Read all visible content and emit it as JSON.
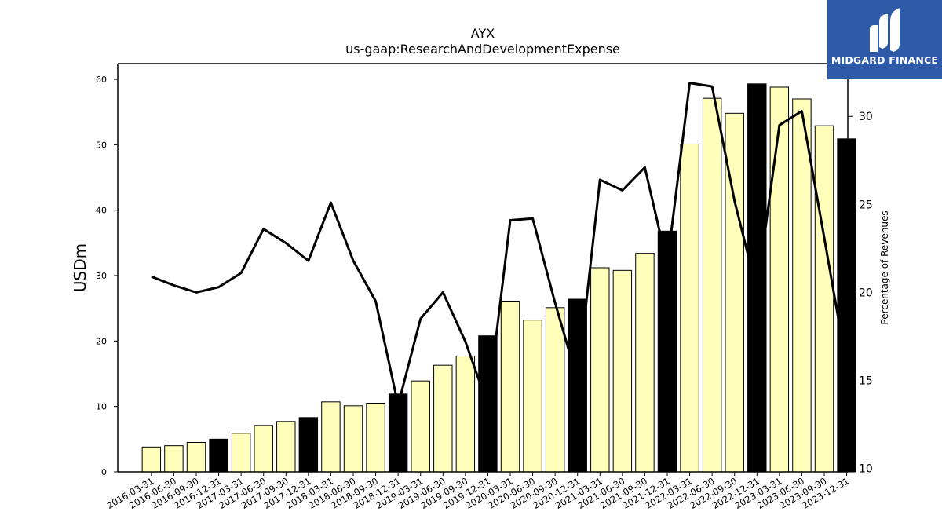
{
  "chart_data": {
    "type": "bar",
    "title": "AYX",
    "subtitle": "us-gaap:ResearchAndDevelopmentExpense",
    "ylabel": "USDm",
    "y2label": "Percentage of Revenues",
    "ylim": [
      0,
      62.4
    ],
    "y2lim": [
      9.8,
      33.0
    ],
    "yticks": [
      0,
      10,
      20,
      30,
      40,
      50,
      60
    ],
    "y2ticks": [
      10,
      15,
      20,
      25,
      30
    ],
    "categories": [
      "2016-03-31",
      "2016-06-30",
      "2016-09-30",
      "2016-12-31",
      "2017-03-31",
      "2017-06-30",
      "2017-09-30",
      "2017-12-31",
      "2018-03-31",
      "2018-06-30",
      "2018-09-30",
      "2018-12-31",
      "2019-03-31",
      "2019-06-30",
      "2019-09-30",
      "2019-12-31",
      "2020-03-31",
      "2020-06-30",
      "2020-09-30",
      "2020-12-31",
      "2021-03-31",
      "2021-06-30",
      "2021-09-30",
      "2021-12-31",
      "2022-03-31",
      "2022-06-30",
      "2022-09-30",
      "2022-12-31",
      "2023-03-31",
      "2023-06-30",
      "2023-09-30",
      "2023-12-31"
    ],
    "series": [
      {
        "kind": "bar",
        "axis": "left",
        "values": [
          3.8,
          4.0,
          4.5,
          5.0,
          5.9,
          7.1,
          7.7,
          8.3,
          10.7,
          10.1,
          10.5,
          11.9,
          13.9,
          16.3,
          17.7,
          20.8,
          26.1,
          23.2,
          25.1,
          26.4,
          31.2,
          30.8,
          33.4,
          36.8,
          50.1,
          57.1,
          54.8,
          59.3,
          58.8,
          57.0,
          52.9,
          50.9
        ],
        "colors": {
          "quarter": "#ffffbb",
          "year_end": "#000000"
        }
      },
      {
        "kind": "line",
        "axis": "right",
        "color": "#000000",
        "values": [
          20.9,
          20.4,
          20.0,
          20.3,
          21.1,
          23.6,
          22.8,
          21.8,
          25.1,
          21.8,
          19.5,
          13.6,
          18.5,
          20.0,
          17.2,
          13.6,
          24.1,
          24.2,
          19.4,
          15.0,
          26.4,
          25.8,
          27.1,
          21.6,
          31.9,
          31.7,
          25.2,
          20.1,
          29.5,
          30.3,
          23.1,
          15.8
        ]
      }
    ],
    "grid": false,
    "legend": "none"
  },
  "branding": {
    "logo_text": "MIDGARD FINANCE",
    "logo_color": "#2f5aa8"
  }
}
